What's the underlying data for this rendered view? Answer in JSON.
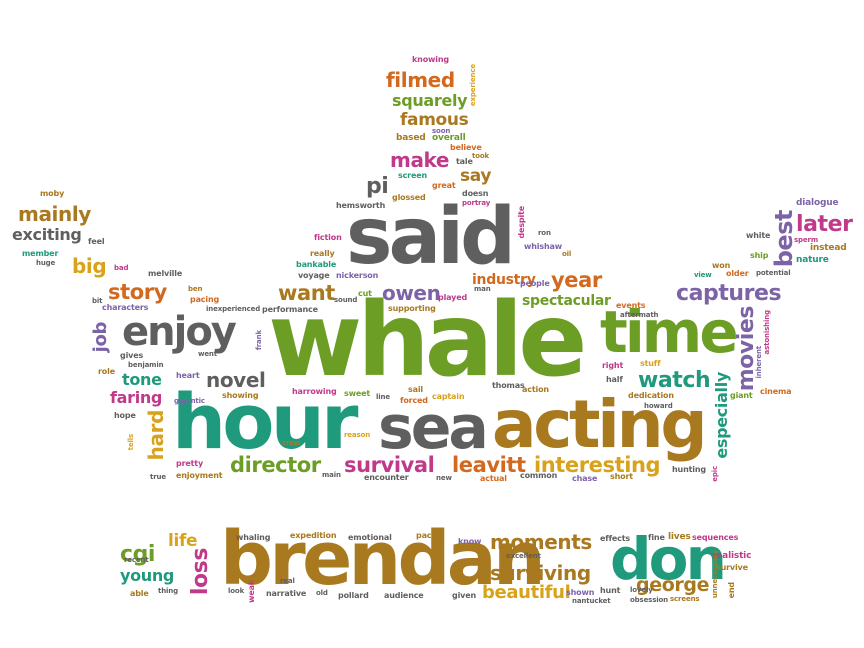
{
  "colors": {
    "green": "#6c9e25",
    "gray": "#5f5f5f",
    "teal": "#1f9a7c",
    "gold": "#a8791f",
    "orange": "#d2691e",
    "purple": "#7c63a8",
    "magenta": "#c0398a",
    "yellow": "#d9a21b"
  },
  "words": {
    "whale": "whale",
    "said": "said",
    "hour": "hour",
    "sea": "sea",
    "acting": "acting",
    "time": "time",
    "brendan": "brendan",
    "don": "don",
    "enjoy": "enjoy",
    "director": "director",
    "survival": "survival",
    "leavitt": "leavitt",
    "interesting": "interesting",
    "watch": "watch",
    "captures": "captures",
    "movies": "movies",
    "best": "best",
    "later": "later",
    "especially": "especially",
    "novel": "novel",
    "story": "story",
    "want": "want",
    "owen": "owen",
    "year": "year",
    "industry": "industry",
    "spectacular": "spectacular",
    "tone": "tone",
    "faring": "faring",
    "hard": "hard",
    "mainly": "mainly",
    "exciting": "exciting",
    "big": "big",
    "filmed": "filmed",
    "squarely": "squarely",
    "famous": "famous",
    "make": "make",
    "say": "say",
    "pi": "pi",
    "moments": "moments",
    "surviving": "surviving",
    "beautiful": "beautiful",
    "george": "george",
    "cgi": "cgi",
    "young": "young",
    "life": "life",
    "loss": "loss",
    "job": "job",
    "dialogue": "dialogue",
    "instead": "instead",
    "nature": "nature",
    "potential": "potential",
    "older": "older",
    "won": "won",
    "view": "view",
    "white": "white",
    "sperm": "sperm",
    "ship": "ship",
    "knowing": "knowing",
    "experience": "experience",
    "based": "based",
    "soon": "soon",
    "overall": "overall",
    "believe": "believe",
    "tale": "tale",
    "took": "took",
    "screen": "screen",
    "great": "great",
    "doesn": "doesn",
    "glossed": "glossed",
    "portray": "portray",
    "hemsworth": "hemsworth",
    "despite": "despite",
    "ron": "ron",
    "whishaw": "whishaw",
    "oil": "oil",
    "fiction": "fiction",
    "really": "really",
    "bankable": "bankable",
    "voyage": "voyage",
    "nickerson": "nickerson",
    "cut": "cut",
    "sound": "sound",
    "played": "played",
    "supporting": "supporting",
    "man": "man",
    "people": "people",
    "events": "events",
    "aftermath": "aftermath",
    "moby": "moby",
    "feel": "feel",
    "member": "member",
    "huge": "huge",
    "bad": "bad",
    "melville": "melville",
    "ben": "ben",
    "pacing": "pacing",
    "bit": "bit",
    "characters": "characters",
    "inexperienced": "inexperienced",
    "performance": "performance",
    "frank": "frank",
    "gives": "gives",
    "benjamin": "benjamin",
    "went": "went",
    "role": "role",
    "heart": "heart",
    "showing": "showing",
    "gigantic": "gigantic",
    "hope": "hope",
    "tells": "tells",
    "pretty": "pretty",
    "enjoyment": "enjoyment",
    "true": "true",
    "crew": "crew",
    "reason": "reason",
    "main": "main",
    "encounter": "encounter",
    "harrowing": "harrowing",
    "sweet": "sweet",
    "line": "line",
    "sail": "sail",
    "forced": "forced",
    "captain": "captain",
    "thomas": "thomas",
    "action": "action",
    "new": "new",
    "actual": "actual",
    "common": "common",
    "chase": "chase",
    "short": "short",
    "right": "right",
    "stuff": "stuff",
    "half": "half",
    "dedication": "dedication",
    "howard": "howard",
    "hunting": "hunting",
    "epic": "epic",
    "giant": "giant",
    "cinema": "cinema",
    "inherent": "inherent",
    "astonishing": "astonishing",
    "whaling": "whaling",
    "expedition": "expedition",
    "emotional": "emotional",
    "pacific": "pacific",
    "know": "know",
    "effects": "effects",
    "fine": "fine",
    "lives": "lives",
    "sequences": "sequences",
    "recent": "recent",
    "real": "real",
    "unnecessary": "unnecessary",
    "excellent": "excellent",
    "hunt": "hunt",
    "realistic": "realistic",
    "survive": "survive",
    "able": "able",
    "thing": "thing",
    "look": "look",
    "weak": "weak",
    "narrative": "narrative",
    "old": "old",
    "pollard": "pollard",
    "audience": "audience",
    "given": "given",
    "shown": "shown",
    "nantucket": "nantucket",
    "lovely": "lovely",
    "obsession": "obsession",
    "screens": "screens",
    "end": "end"
  }
}
